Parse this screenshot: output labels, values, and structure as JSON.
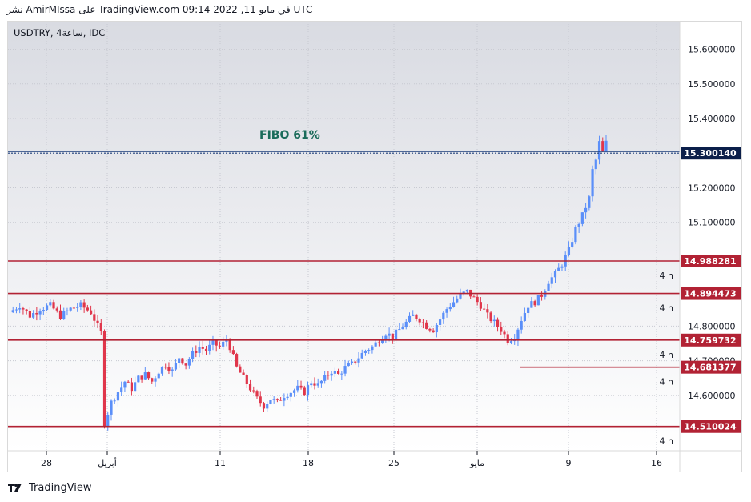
{
  "header": {
    "text": "نشر AmirMIssa على TradingView.com في مايو 11, 2022 09:14 UTC"
  },
  "footer": {
    "brand": "TradingView"
  },
  "chart_data": {
    "type": "candlestick",
    "symbol": "USDTRY",
    "interval": "4ساعة",
    "source": "IDC",
    "title": "USDTRY, 4ساعة, IDC",
    "ylim": [
      14.44,
      15.68
    ],
    "y_ticks": [
      "15.600000",
      "15.500000",
      "15.400000",
      "15.200000",
      "15.100000",
      "14.800000",
      "14.700000",
      "14.600000"
    ],
    "x_ticks": [
      "28",
      "أبريل",
      "11",
      "18",
      "25",
      "مايو",
      "9",
      "16"
    ],
    "grid": true,
    "colors": {
      "up": "#5b8ff9",
      "down": "#e0364b",
      "level": "#b22234",
      "fibo": "#1c3d7a",
      "fibo_text": "#1a6b5a"
    },
    "levels": [
      {
        "value": 14.988281,
        "label": "14.988281",
        "tf": "4 h"
      },
      {
        "value": 14.894473,
        "label": "14.894473",
        "tf": "4 h"
      },
      {
        "value": 14.759732,
        "label": "14.759732",
        "tf": "4 h"
      },
      {
        "value": 14.681377,
        "label": "14.681377",
        "tf": "4 h"
      },
      {
        "value": 14.510024,
        "label": "14.510024",
        "tf": "4 h"
      }
    ],
    "fibo": {
      "value": 15.30014,
      "label": "15.300140",
      "text": "FIBO 61%"
    },
    "price_path": [
      [
        0,
        14.84
      ],
      [
        3,
        14.86
      ],
      [
        6,
        14.83
      ],
      [
        9,
        14.85
      ],
      [
        12,
        14.86
      ],
      [
        15,
        14.83
      ],
      [
        18,
        14.85
      ],
      [
        21,
        14.86
      ],
      [
        24,
        14.84
      ],
      [
        26,
        14.8
      ],
      [
        27,
        14.78
      ],
      [
        28,
        14.52
      ],
      [
        30,
        14.58
      ],
      [
        32,
        14.61
      ],
      [
        34,
        14.64
      ],
      [
        36,
        14.62
      ],
      [
        38,
        14.65
      ],
      [
        40,
        14.66
      ],
      [
        42,
        14.64
      ],
      [
        44,
        14.67
      ],
      [
        46,
        14.69
      ],
      [
        48,
        14.67
      ],
      [
        50,
        14.71
      ],
      [
        52,
        14.69
      ],
      [
        54,
        14.72
      ],
      [
        56,
        14.74
      ],
      [
        58,
        14.73
      ],
      [
        60,
        14.75
      ],
      [
        62,
        14.74
      ],
      [
        64,
        14.76
      ],
      [
        65,
        14.74
      ],
      [
        67,
        14.68
      ],
      [
        69,
        14.65
      ],
      [
        71,
        14.62
      ],
      [
        73,
        14.59
      ],
      [
        75,
        14.57
      ],
      [
        77,
        14.59
      ],
      [
        79,
        14.58
      ],
      [
        81,
        14.6
      ],
      [
        83,
        14.61
      ],
      [
        85,
        14.62
      ],
      [
        87,
        14.61
      ],
      [
        89,
        14.64
      ],
      [
        91,
        14.63
      ],
      [
        93,
        14.65
      ],
      [
        95,
        14.67
      ],
      [
        97,
        14.66
      ],
      [
        99,
        14.68
      ],
      [
        101,
        14.69
      ],
      [
        103,
        14.71
      ],
      [
        105,
        14.73
      ],
      [
        107,
        14.74
      ],
      [
        109,
        14.76
      ],
      [
        111,
        14.78
      ],
      [
        113,
        14.77
      ],
      [
        115,
        14.79
      ],
      [
        117,
        14.81
      ],
      [
        119,
        14.83
      ],
      [
        121,
        14.82
      ],
      [
        123,
        14.8
      ],
      [
        125,
        14.79
      ],
      [
        127,
        14.82
      ],
      [
        129,
        14.85
      ],
      [
        131,
        14.87
      ],
      [
        133,
        14.89
      ],
      [
        135,
        14.9
      ],
      [
        137,
        14.88
      ],
      [
        139,
        14.86
      ],
      [
        141,
        14.83
      ],
      [
        143,
        14.81
      ],
      [
        145,
        14.79
      ],
      [
        147,
        14.76
      ],
      [
        149,
        14.77
      ],
      [
        151,
        14.82
      ],
      [
        153,
        14.86
      ],
      [
        155,
        14.87
      ],
      [
        157,
        14.89
      ],
      [
        159,
        14.93
      ],
      [
        161,
        14.95
      ],
      [
        163,
        14.98
      ],
      [
        165,
        15.02
      ],
      [
        167,
        15.08
      ],
      [
        169,
        15.12
      ],
      [
        171,
        15.17
      ],
      [
        172,
        15.25
      ],
      [
        173,
        15.28
      ],
      [
        174,
        15.33
      ],
      [
        175,
        15.3
      ],
      [
        176,
        15.33
      ]
    ]
  }
}
